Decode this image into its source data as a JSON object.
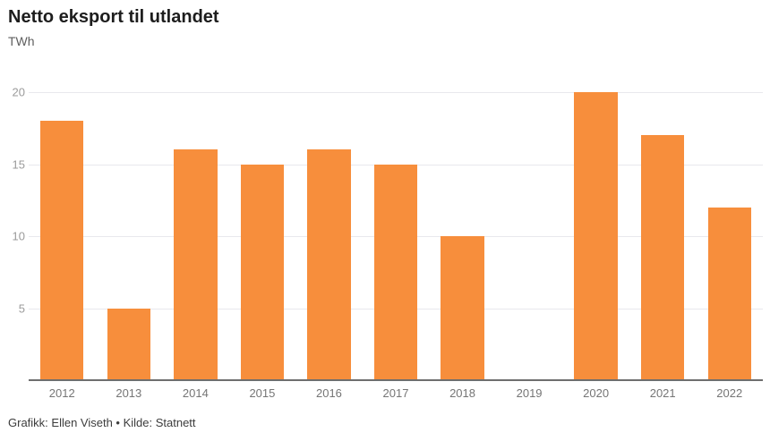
{
  "header": {
    "title": "Netto eksport til utlandet",
    "subtitle": "TWh"
  },
  "footer": {
    "credit": "Grafikk: Ellen Viseth • Kilde: Statnett"
  },
  "chart_data": {
    "type": "bar",
    "title": "Netto eksport til utlandet",
    "xlabel": "",
    "ylabel": "TWh",
    "categories": [
      "2012",
      "2013",
      "2014",
      "2015",
      "2016",
      "2017",
      "2018",
      "2019",
      "2020",
      "2021",
      "2022"
    ],
    "values": [
      18,
      5,
      16,
      15,
      16,
      15,
      10,
      0,
      20,
      17,
      12
    ],
    "ylim": [
      0,
      20
    ],
    "yticks": [
      5,
      10,
      15,
      20
    ],
    "grid": true,
    "legend": "none",
    "bar_width_fraction": 0.65
  },
  "colors": {
    "background": "#ffffff",
    "bar": "#f78e3c",
    "grid": "#e8e8ed",
    "axis_line": "#6e6e6e",
    "y_tick": "#9b9b9b",
    "x_tick": "#757575",
    "title": "#1d1d1d",
    "subtitle": "#5f5f5f",
    "footer": "#3c3c3c"
  }
}
